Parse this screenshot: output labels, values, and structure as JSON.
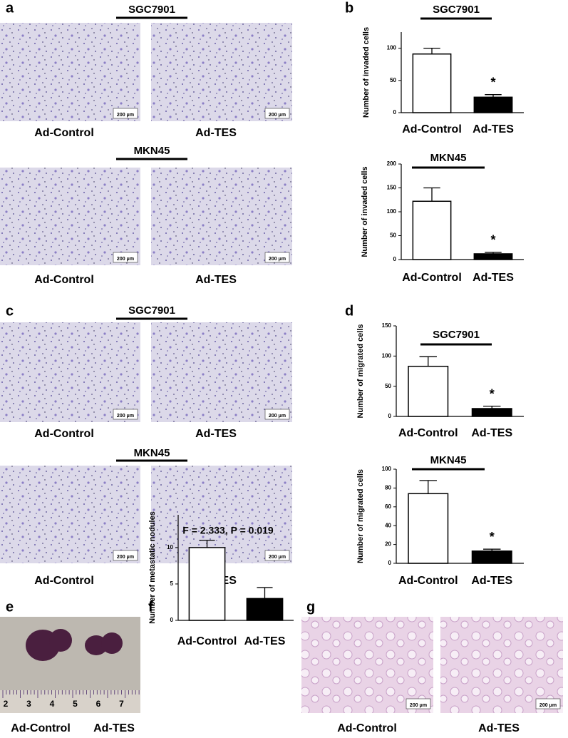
{
  "panel_labels": [
    "a",
    "b",
    "c",
    "d",
    "e",
    "f",
    "g"
  ],
  "scale_bar": "200 μm",
  "image_panels": [
    {
      "title": "SGC7901",
      "captions": [
        "Ad-Control",
        "Ad-TES"
      ]
    },
    {
      "title": "MKN45",
      "captions": [
        "Ad-Control",
        "Ad-TES"
      ]
    },
    {
      "title": "SGC7901",
      "captions": [
        "Ad-Control",
        "Ad-TES"
      ]
    },
    {
      "title": "MKN45",
      "captions": [
        "Ad-Control",
        "Ad-TES"
      ]
    },
    {
      "captions": [
        "Ad-Control",
        "Ad-TES"
      ],
      "ruler_labels": [
        "2",
        "3",
        "4",
        "5",
        "6",
        "7"
      ]
    },
    {
      "captions": [
        "Ad-Control",
        "Ad-TES"
      ]
    }
  ],
  "chart_data": [
    {
      "type": "bar",
      "title": "SGC7901",
      "ylabel": "Number of invaded cells",
      "categories": [
        "Ad-Control",
        "Ad-TES"
      ],
      "values": [
        91,
        24
      ],
      "errors": [
        9,
        4
      ],
      "colors": [
        "#ffffff",
        "#000000"
      ],
      "ylim": [
        0,
        125
      ],
      "yticks": [
        0,
        50,
        100
      ],
      "annotation": "*"
    },
    {
      "type": "bar",
      "title": "MKN45",
      "ylabel": "Number of invaded cells",
      "categories": [
        "Ad-Control",
        "Ad-TES"
      ],
      "values": [
        122,
        12
      ],
      "errors": [
        28,
        3
      ],
      "colors": [
        "#ffffff",
        "#000000"
      ],
      "ylim": [
        0,
        200
      ],
      "yticks": [
        0,
        50,
        100,
        150,
        200
      ],
      "annotation": "*"
    },
    {
      "type": "bar",
      "title": "SGC7901",
      "ylabel": "Number of migrated cells",
      "categories": [
        "Ad-Control",
        "Ad-TES"
      ],
      "values": [
        83,
        13
      ],
      "errors": [
        16,
        4
      ],
      "colors": [
        "#ffffff",
        "#000000"
      ],
      "ylim": [
        0,
        150
      ],
      "yticks": [
        0,
        50,
        100,
        150
      ],
      "annotation": "*"
    },
    {
      "type": "bar",
      "title": "MKN45",
      "ylabel": "Number of migrated cells",
      "categories": [
        "Ad-Control",
        "Ad-TES"
      ],
      "values": [
        74,
        13
      ],
      "errors": [
        14,
        2
      ],
      "colors": [
        "#ffffff",
        "#000000"
      ],
      "ylim": [
        0,
        100
      ],
      "yticks": [
        0,
        20,
        40,
        60,
        80,
        100
      ],
      "annotation": "*"
    },
    {
      "type": "bar",
      "ylabel": "Number of metastatic nodules",
      "categories": [
        "Ad-Control",
        "Ad-TES"
      ],
      "values": [
        10,
        3
      ],
      "errors": [
        1,
        1.5
      ],
      "colors": [
        "#ffffff",
        "#000000"
      ],
      "ylim": [
        0,
        14.5
      ],
      "yticks": [
        0,
        5,
        10
      ],
      "annotation": "F = 2.333, P = 0.019"
    }
  ]
}
